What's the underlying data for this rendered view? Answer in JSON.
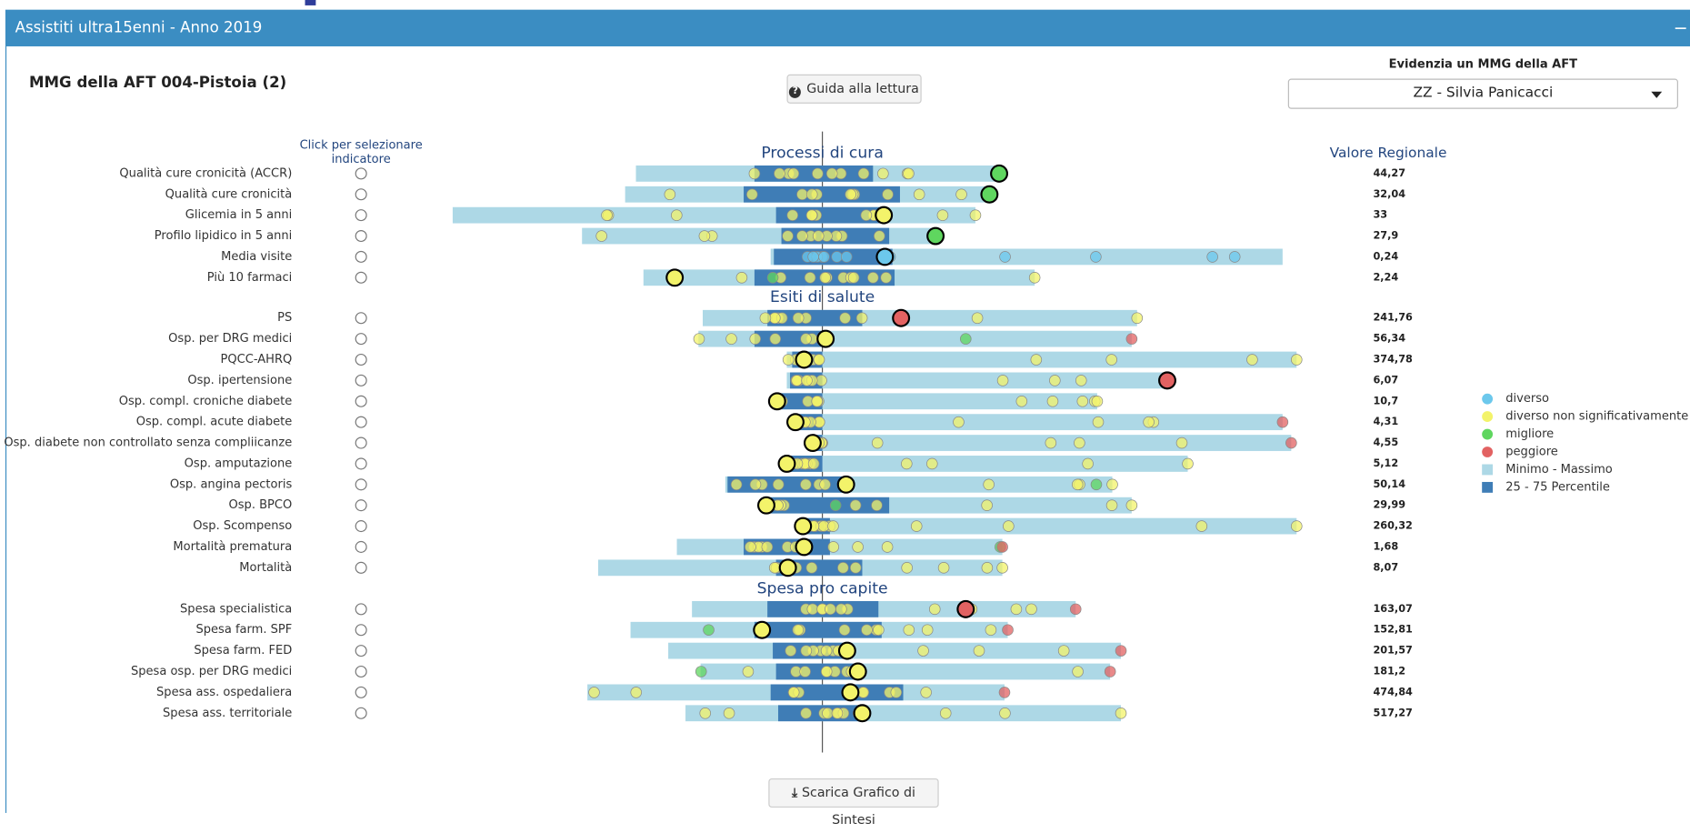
{
  "header": {
    "title": "Assistiti ultra15enni - Anno 2019",
    "collapse": "−"
  },
  "panel": {
    "title": "MMG della AFT 004-Pistoia (2)"
  },
  "buttons": {
    "guide": "Guida alla lettura",
    "download": "Scarica Grafico di Sintesi"
  },
  "selector": {
    "label": "Evidenzia un MMG della AFT",
    "value": "ZZ - Silvia Panicacci"
  },
  "columns": {
    "select": [
      "Click per selezionare",
      "indicatore"
    ],
    "regional": "Valore Regionale"
  },
  "sections": [
    {
      "title": "Processi di cura",
      "rows": [
        {
          "label": "Qualità cure cronicità (ACCR)",
          "value": "44,27"
        },
        {
          "label": "Qualità cure cronicità",
          "value": "32,04"
        },
        {
          "label": "Glicemia in 5 anni",
          "value": "33"
        },
        {
          "label": "Profilo lipidico in 5 anni",
          "value": "27,9"
        },
        {
          "label": "Media visite",
          "value": "0,24"
        },
        {
          "label": "Più 10 farmaci",
          "value": "2,24"
        }
      ]
    },
    {
      "title": "Esiti di salute",
      "rows": [
        {
          "label": "PS",
          "value": "241,76"
        },
        {
          "label": "Osp. per DRG medici",
          "value": "56,34"
        },
        {
          "label": "PQCC-AHRQ",
          "value": "374,78"
        },
        {
          "label": "Osp. ipertensione",
          "value": "6,07"
        },
        {
          "label": "Osp. compl. croniche diabete",
          "value": "10,7"
        },
        {
          "label": "Osp. compl. acute diabete",
          "value": "4,31"
        },
        {
          "label": "Osp. diabete non controllato senza compliicanze",
          "value": "4,55"
        },
        {
          "label": "Osp. amputazione",
          "value": "5,12"
        },
        {
          "label": "Osp. angina pectoris",
          "value": "50,14"
        },
        {
          "label": "Osp. BPCO",
          "value": "29,99"
        },
        {
          "label": "Osp. Scompenso",
          "value": "260,32"
        },
        {
          "label": "Mortalità prematura",
          "value": "1,68"
        },
        {
          "label": "Mortalità",
          "value": "8,07"
        }
      ]
    },
    {
      "title": "Spesa pro capite",
      "rows": [
        {
          "label": "Spesa specialistica",
          "value": "163,07"
        },
        {
          "label": "Spesa farm. SPF",
          "value": "152,81"
        },
        {
          "label": "Spesa farm. FED",
          "value": "201,57"
        },
        {
          "label": "Spesa osp. per DRG medici",
          "value": "181,2"
        },
        {
          "label": "Spesa ass. ospedaliera",
          "value": "474,84"
        },
        {
          "label": "Spesa ass. territoriale",
          "value": "517,27"
        }
      ]
    }
  ],
  "legend": [
    {
      "label": "diverso",
      "color": "#6cc8ec"
    },
    {
      "label": "diverso non significativamente",
      "color": "#f3f36a"
    },
    {
      "label": "migliore",
      "color": "#5fd65f"
    },
    {
      "label": "peggiore",
      "color": "#e26262"
    },
    {
      "label": "Minimo - Massimo",
      "color": "#add8e6"
    },
    {
      "label": "25 - 75 Percentile",
      "color": "#3f7db6"
    }
  ]
}
